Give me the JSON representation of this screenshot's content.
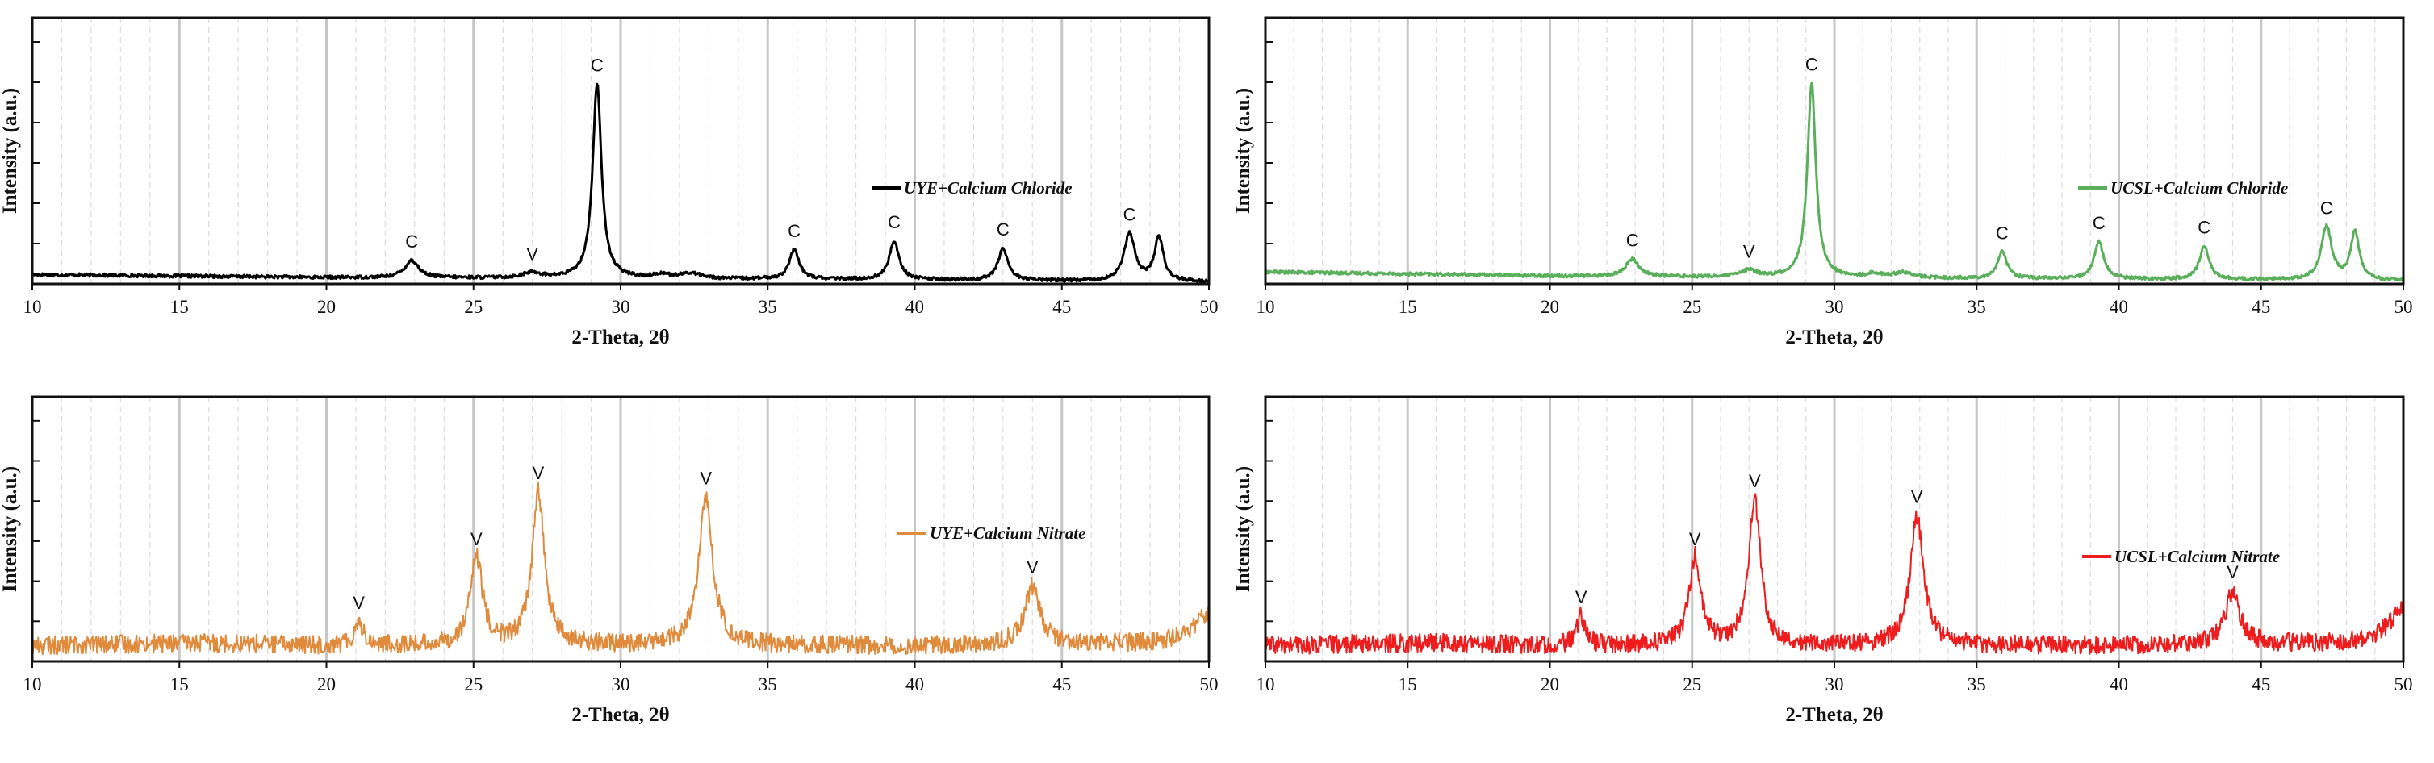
{
  "chart_data": [
    {
      "type": "line",
      "panel": "top-left",
      "series_name": "UYE+Calcium Chloride",
      "color": "#000000",
      "xlabel": "2-Theta, 2θ",
      "ylabel": "Intensity (a.u.)",
      "xlim": [
        10,
        50
      ],
      "ylim": [
        0,
        100
      ],
      "x_ticks": [
        "10",
        "15",
        "20",
        "25",
        "30",
        "35",
        "40",
        "45",
        "50"
      ],
      "legend_position": "center-right",
      "noise": 0.6,
      "baseline": [
        [
          10,
          3.5
        ],
        [
          20,
          2.4
        ],
        [
          30,
          2.0
        ],
        [
          40,
          1.5
        ],
        [
          50,
          0.8
        ]
      ],
      "peaks": [
        {
          "x": 22.9,
          "height": 6.5,
          "width": 0.28,
          "label": "C"
        },
        {
          "x": 27.0,
          "height": 2.0,
          "width": 0.35,
          "label": "V"
        },
        {
          "x": 29.2,
          "height": 73,
          "width": 0.18,
          "label": "C"
        },
        {
          "x": 31.4,
          "height": 1.5,
          "width": 0.3,
          "label": ""
        },
        {
          "x": 32.4,
          "height": 2.0,
          "width": 0.4,
          "label": ""
        },
        {
          "x": 35.9,
          "height": 11,
          "width": 0.2,
          "label": "C"
        },
        {
          "x": 39.3,
          "height": 14.5,
          "width": 0.2,
          "label": "C"
        },
        {
          "x": 43.0,
          "height": 12,
          "width": 0.2,
          "label": "C"
        },
        {
          "x": 47.3,
          "height": 18,
          "width": 0.22,
          "label": "C"
        },
        {
          "x": 48.3,
          "height": 16.5,
          "width": 0.18,
          "label": ""
        }
      ]
    },
    {
      "type": "line",
      "panel": "top-right",
      "series_name": "UCSL+Calcium Chloride",
      "color": "#5aaf5a",
      "xlabel": "2-Theta, 2θ",
      "ylabel": "Intensity (a.u.)",
      "xlim": [
        10,
        50
      ],
      "ylim": [
        0,
        100
      ],
      "x_ticks": [
        "10",
        "15",
        "20",
        "25",
        "30",
        "35",
        "40",
        "45",
        "50"
      ],
      "legend_position": "center-right",
      "noise": 0.6,
      "baseline": [
        [
          10,
          4.5
        ],
        [
          20,
          3.0
        ],
        [
          30,
          2.2
        ],
        [
          40,
          1.8
        ],
        [
          50,
          1.2
        ]
      ],
      "peaks": [
        {
          "x": 22.9,
          "height": 6.5,
          "width": 0.28,
          "label": "C"
        },
        {
          "x": 27.0,
          "height": 2.5,
          "width": 0.35,
          "label": "V"
        },
        {
          "x": 29.2,
          "height": 73,
          "width": 0.18,
          "label": "C"
        },
        {
          "x": 31.4,
          "height": 1.5,
          "width": 0.3,
          "label": ""
        },
        {
          "x": 32.4,
          "height": 2.0,
          "width": 0.4,
          "label": ""
        },
        {
          "x": 35.9,
          "height": 10,
          "width": 0.2,
          "label": "C"
        },
        {
          "x": 39.3,
          "height": 14,
          "width": 0.2,
          "label": "C"
        },
        {
          "x": 43.0,
          "height": 12.5,
          "width": 0.2,
          "label": "C"
        },
        {
          "x": 47.3,
          "height": 20,
          "width": 0.22,
          "label": "C"
        },
        {
          "x": 48.3,
          "height": 18,
          "width": 0.18,
          "label": ""
        }
      ]
    },
    {
      "type": "line",
      "panel": "bottom-left",
      "series_name": "UYE+Calcium Nitrate",
      "color": "#e08a3c",
      "xlabel": "2-Theta, 2θ",
      "ylabel": "Intensity (a.u.)",
      "xlim": [
        10,
        50
      ],
      "ylim": [
        0,
        100
      ],
      "x_ticks": [
        "10",
        "15",
        "20",
        "25",
        "30",
        "35",
        "40",
        "45",
        "50"
      ],
      "legend_position": "center-right",
      "noise": 3.5,
      "baseline": [
        [
          10,
          6
        ],
        [
          16,
          7
        ],
        [
          20,
          6
        ],
        [
          30,
          6
        ],
        [
          40,
          6
        ],
        [
          48,
          7
        ],
        [
          50,
          10
        ]
      ],
      "peaks": [
        {
          "x": 21.1,
          "height": 9,
          "width": 0.18,
          "label": "V"
        },
        {
          "x": 25.1,
          "height": 33,
          "width": 0.25,
          "label": "V"
        },
        {
          "x": 27.2,
          "height": 58,
          "width": 0.25,
          "label": "V"
        },
        {
          "x": 32.9,
          "height": 56,
          "width": 0.28,
          "label": "V"
        },
        {
          "x": 44.0,
          "height": 22,
          "width": 0.3,
          "label": "V"
        },
        {
          "x": 49.9,
          "height": 8,
          "width": 0.4,
          "label": ""
        }
      ]
    },
    {
      "type": "line",
      "panel": "bottom-right",
      "series_name": "UCSL+Calcium Nitrate",
      "color": "#ee1c1c",
      "xlabel": "2-Theta, 2θ",
      "ylabel": "Intensity (a.u.)",
      "xlim": [
        10,
        50
      ],
      "ylim": [
        0,
        100
      ],
      "x_ticks": [
        "10",
        "15",
        "20",
        "25",
        "30",
        "35",
        "40",
        "45",
        "50"
      ],
      "legend_position": "center-right",
      "noise": 3.5,
      "baseline": [
        [
          10,
          6
        ],
        [
          16,
          7
        ],
        [
          20,
          6
        ],
        [
          30,
          6
        ],
        [
          40,
          6
        ],
        [
          48,
          7
        ],
        [
          50,
          11
        ]
      ],
      "peaks": [
        {
          "x": 21.1,
          "height": 11,
          "width": 0.18,
          "label": "V"
        },
        {
          "x": 25.1,
          "height": 33,
          "width": 0.25,
          "label": "V"
        },
        {
          "x": 27.2,
          "height": 55,
          "width": 0.25,
          "label": "V"
        },
        {
          "x": 32.9,
          "height": 49,
          "width": 0.28,
          "label": "V"
        },
        {
          "x": 44.0,
          "height": 20,
          "width": 0.3,
          "label": "V"
        },
        {
          "x": 49.9,
          "height": 9,
          "width": 0.4,
          "label": ""
        }
      ]
    }
  ]
}
